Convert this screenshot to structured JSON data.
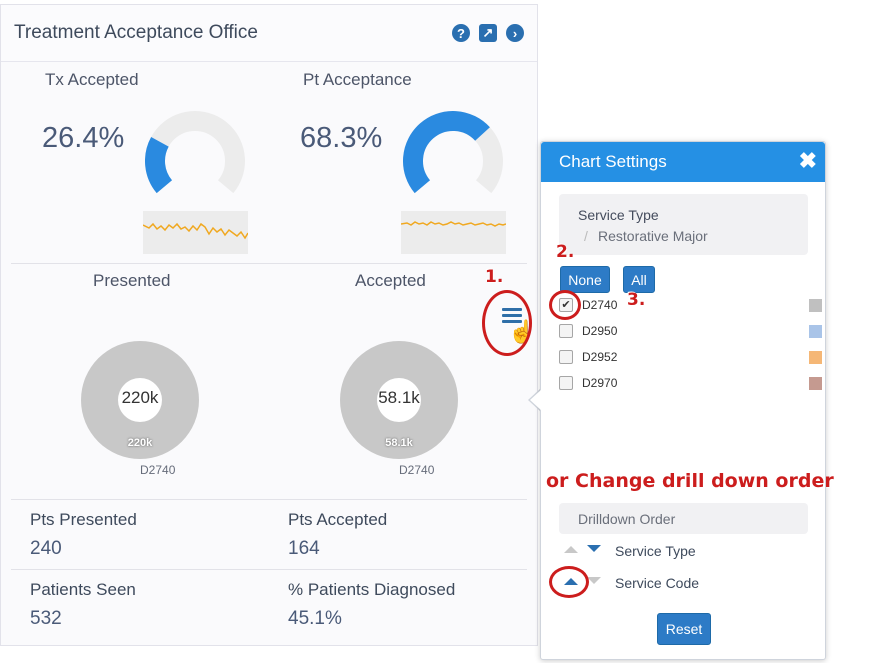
{
  "card": {
    "title": "Treatment Acceptance Office",
    "icons": [
      "help-icon",
      "popout-icon",
      "next-icon"
    ],
    "help_glyph": "?",
    "popout_glyph": "↗",
    "next_glyph": "›"
  },
  "gauges": [
    {
      "title": "Tx Accepted",
      "value": "26.4%",
      "fraction": 0.264,
      "color": "#2a8ae0"
    },
    {
      "title": "Pt Acceptance",
      "value": "68.3%",
      "fraction": 0.683,
      "color": "#2a8ae0"
    }
  ],
  "pies": [
    {
      "title": "Presented",
      "center_value": "220k",
      "slice_label": "220k",
      "legend": "D2740"
    },
    {
      "title": "Accepted",
      "center_value": "58.1k",
      "slice_label": "58.1k",
      "legend": "D2740"
    }
  ],
  "stats": {
    "pts_presented_label": "Pts Presented",
    "pts_presented_value": "240",
    "pts_accepted_label": "Pts Accepted",
    "pts_accepted_value": "164",
    "patients_seen_label": "Patients Seen",
    "patients_seen_value": "532",
    "pct_diagnosed_label": "% Patients Diagnosed",
    "pct_diagnosed_value": "45.1%"
  },
  "annotations": {
    "step1": "1.",
    "step2": "2.",
    "step3": "3.",
    "drill_note": "or Change drill down order"
  },
  "settings": {
    "title": "Chart Settings",
    "close_glyph": "✖",
    "breadcrumb_root": "Service Type",
    "breadcrumb_sep": "/",
    "breadcrumb_leaf": "Restorative Major",
    "none_label": "None",
    "all_label": "All",
    "codes": [
      {
        "code": "D2740",
        "checked": true,
        "color": "#c0c0c0"
      },
      {
        "code": "D2950",
        "checked": false,
        "color": "#a9c4e8"
      },
      {
        "code": "D2952",
        "checked": false,
        "color": "#f5b776"
      },
      {
        "code": "D2970",
        "checked": false,
        "color": "#c59a90"
      }
    ],
    "check_glyph": "✔",
    "drilldown_label": "Drilldown Order",
    "order_items": [
      "Service Type",
      "Service Code"
    ],
    "reset_label": "Reset"
  },
  "colors": {
    "accent": "#2590e4",
    "button": "#2d7bc6",
    "annotation": "#cc1d1d",
    "sparkline": "#f0a820",
    "pie_grey": "#c8c8c8"
  }
}
